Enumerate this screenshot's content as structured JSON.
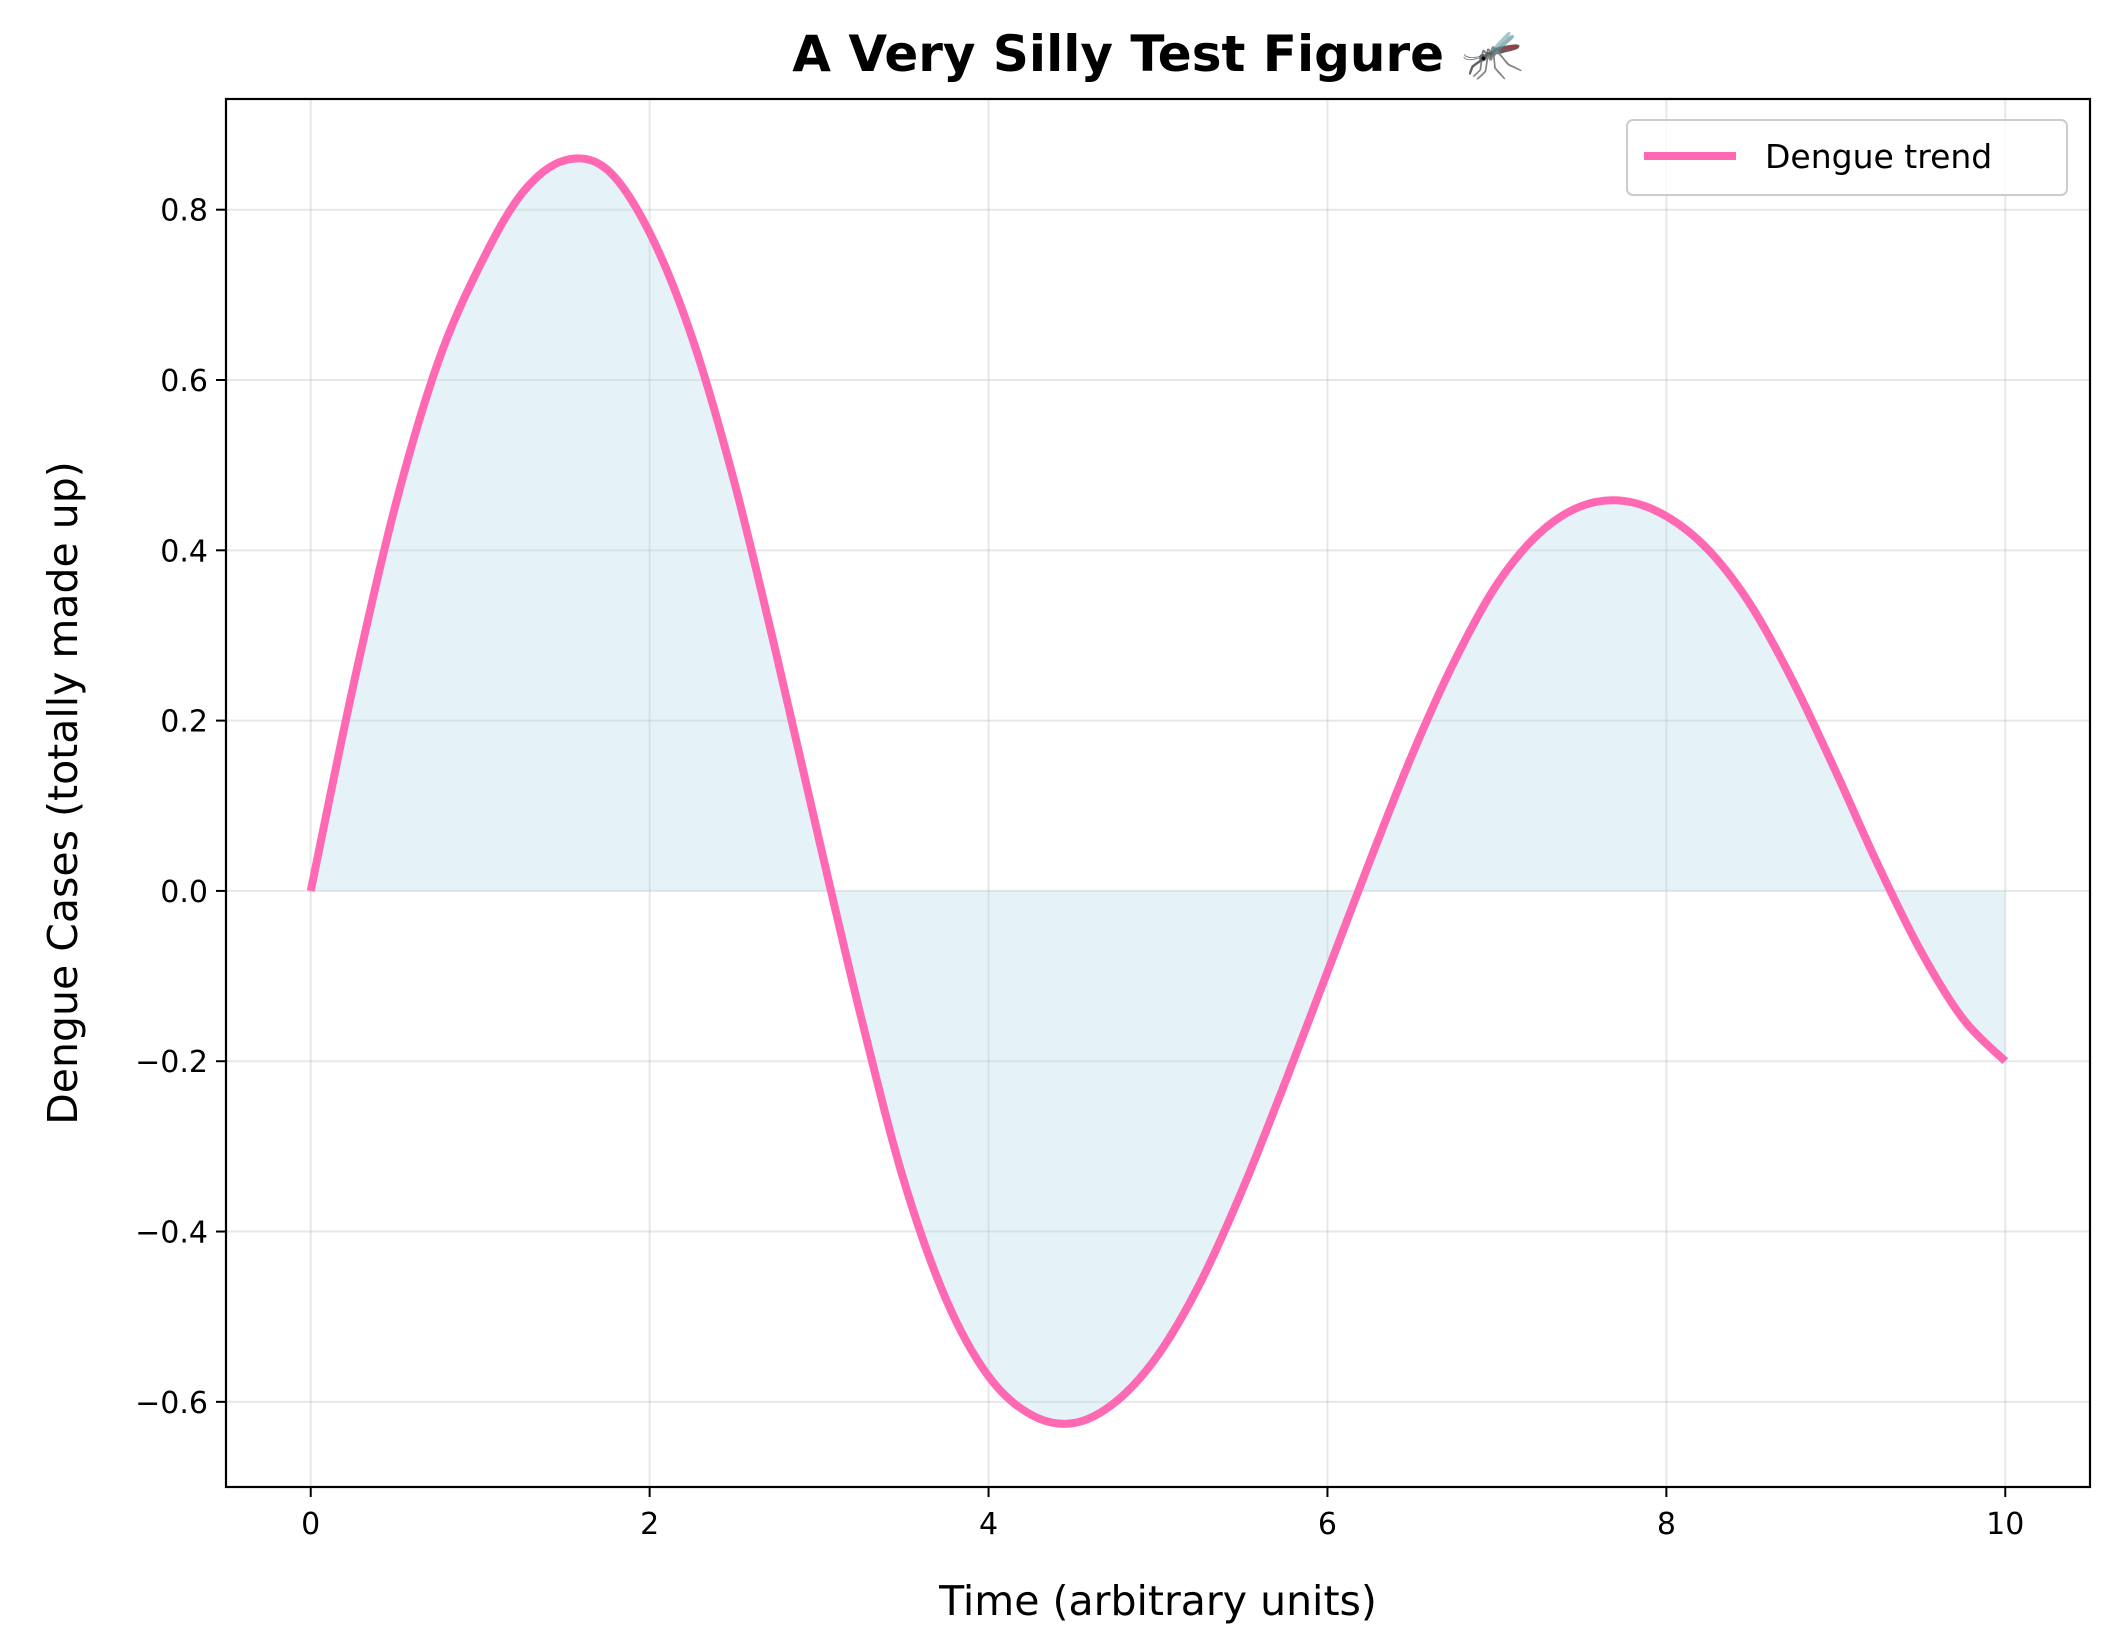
{
  "chart_data": {
    "type": "line",
    "title": "A Very Silly Test Figure 🦟",
    "xlabel": "Time (arbitrary units)",
    "ylabel": "Dengue Cases (totally made up)",
    "xlim": [
      -0.5,
      10.5
    ],
    "ylim": [
      -0.7,
      0.93
    ],
    "x_ticks": [
      0,
      2,
      4,
      6,
      8,
      10
    ],
    "y_ticks": [
      -0.6,
      -0.4,
      -0.2,
      0.0,
      0.2,
      0.4,
      0.6,
      0.8
    ],
    "x_tick_labels": [
      "0",
      "2",
      "4",
      "6",
      "8",
      "10"
    ],
    "y_tick_labels": [
      "−0.6",
      "−0.4",
      "−0.2",
      "0.0",
      "0.2",
      "0.4",
      "0.6",
      "0.8"
    ],
    "grid": true,
    "legend_position": "top-right",
    "fill_between_zero": true,
    "series": [
      {
        "name": "Dengue trend",
        "color": "#ff69b4",
        "fill_color": "#add8e6",
        "x": [
          0,
          0.25,
          0.5,
          0.75,
          1.0,
          1.25,
          1.5,
          1.75,
          2.0,
          2.25,
          2.5,
          2.75,
          3.0,
          3.25,
          3.5,
          3.75,
          4.0,
          4.25,
          4.5,
          4.75,
          5.0,
          5.25,
          5.5,
          5.75,
          6.0,
          6.25,
          6.5,
          6.75,
          7.0,
          7.25,
          7.5,
          7.75,
          8.0,
          8.25,
          8.5,
          8.75,
          9.0,
          9.25,
          9.5,
          9.75,
          10.0
        ],
        "y": [
          0.0,
          0.24,
          0.453,
          0.62,
          0.735,
          0.82,
          0.858,
          0.847,
          0.773,
          0.65,
          0.48,
          0.276,
          0.06,
          -0.15,
          -0.34,
          -0.48,
          -0.57,
          -0.615,
          -0.625,
          -0.6,
          -0.545,
          -0.46,
          -0.35,
          -0.225,
          -0.095,
          0.035,
          0.16,
          0.27,
          0.36,
          0.42,
          0.452,
          0.458,
          0.44,
          0.4,
          0.335,
          0.245,
          0.14,
          0.03,
          -0.07,
          -0.15,
          -0.2
        ]
      }
    ]
  }
}
